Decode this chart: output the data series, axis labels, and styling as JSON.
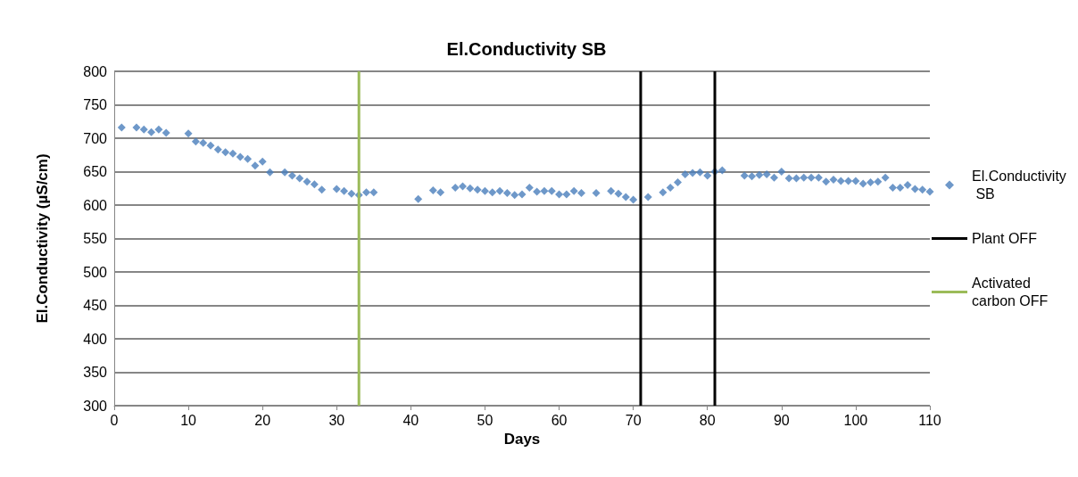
{
  "chart_data": {
    "type": "scatter",
    "title": "El.Conductivity SB",
    "xlabel": "Days",
    "ylabel": "El.Conductivity (µS/cm)",
    "x": [
      1,
      3,
      4,
      5,
      6,
      7,
      10,
      11,
      12,
      13,
      14,
      15,
      16,
      17,
      18,
      19,
      20,
      21,
      23,
      24,
      25,
      26,
      27,
      28,
      30,
      31,
      32,
      33,
      34,
      35,
      41,
      43,
      44,
      46,
      47,
      48,
      49,
      50,
      51,
      52,
      53,
      54,
      55,
      56,
      57,
      58,
      59,
      60,
      61,
      62,
      63,
      65,
      67,
      68,
      69,
      70,
      72,
      74,
      75,
      76,
      77,
      78,
      79,
      80,
      81,
      82,
      85,
      86,
      87,
      88,
      89,
      90,
      91,
      92,
      93,
      94,
      95,
      96,
      97,
      98,
      99,
      100,
      101,
      102,
      103,
      104,
      105,
      106,
      107,
      108,
      109,
      110
    ],
    "series": [
      {
        "name": "El.Conductivity SB",
        "color": "#4a7ebb",
        "values": [
          716,
          716,
          713,
          709,
          713,
          708,
          707,
          695,
          693,
          689,
          683,
          679,
          677,
          672,
          669,
          659,
          665,
          649,
          649,
          644,
          640,
          635,
          631,
          623,
          624,
          621,
          617,
          615,
          619,
          619,
          609,
          622,
          619,
          626,
          628,
          625,
          623,
          621,
          619,
          621,
          618,
          615,
          616,
          626,
          620,
          621,
          621,
          616,
          616,
          621,
          618,
          618,
          621,
          617,
          612,
          608,
          612,
          619,
          626,
          634,
          646,
          648,
          649,
          644,
          650,
          652,
          644,
          643,
          645,
          646,
          641,
          650,
          640,
          640,
          641,
          641,
          641,
          635,
          638,
          636,
          636,
          636,
          632,
          634,
          635,
          641,
          626,
          626,
          630,
          624,
          623,
          620
        ]
      },
      {
        "name": "Plant OFF",
        "type": "line",
        "marker": "none",
        "color": "#000000",
        "x": [
          71,
          71
        ],
        "values": [
          300,
          800
        ]
      },
      {
        "type": "line",
        "marker": "none",
        "color": "#000000",
        "x": [
          81,
          81
        ],
        "values": [
          300,
          800
        ]
      },
      {
        "name": "Activated carbon OFF",
        "type": "line",
        "marker": "none",
        "color": "#9bbb59",
        "x": [
          33,
          33
        ],
        "values": [
          300,
          800
        ]
      }
    ],
    "marker": "diamond",
    "xlim": [
      0,
      110
    ],
    "xticks": [
      0,
      10,
      20,
      30,
      40,
      50,
      60,
      70,
      80,
      90,
      100,
      110
    ],
    "ylim": [
      300,
      800
    ],
    "yticks": [
      300,
      350,
      400,
      450,
      500,
      550,
      600,
      650,
      700,
      750,
      800
    ],
    "grid": "y",
    "legend": "right"
  }
}
